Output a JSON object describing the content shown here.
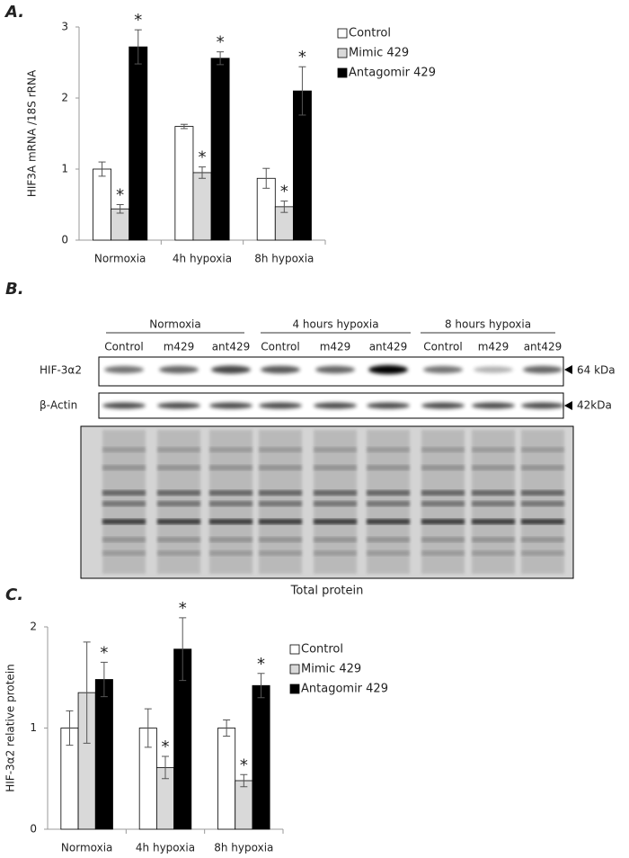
{
  "panels": {
    "a": "A.",
    "b": "B.",
    "c": "C."
  },
  "chart_data": [
    {
      "type": "bar",
      "y_label": "HIF3A mRNA /18S rRNA",
      "categories": [
        "Normoxia",
        "4h hypoxia",
        "8h hypoxia"
      ],
      "ylim": [
        0,
        3
      ],
      "yticks": [
        0,
        1,
        2,
        3
      ],
      "grid": false,
      "legend": "right",
      "series": [
        {
          "name": "Control",
          "color": "#ffffff",
          "values": [
            1.0,
            1.6,
            0.87
          ],
          "errors": [
            0.1,
            0.03,
            0.14
          ],
          "annotations": [
            null,
            null,
            null
          ]
        },
        {
          "name": "Mimic 429",
          "color": "#d9d9d9",
          "values": [
            0.44,
            0.95,
            0.47
          ],
          "errors": [
            0.06,
            0.08,
            0.08
          ],
          "annotations": [
            "*",
            "*",
            "*"
          ]
        },
        {
          "name": "Antagomir 429",
          "color": "#000000",
          "values": [
            2.72,
            2.56,
            2.1
          ],
          "errors": [
            0.24,
            0.09,
            0.34
          ],
          "annotations": [
            "*",
            "*",
            "*"
          ]
        }
      ]
    },
    {
      "type": "bar",
      "y_label": "HIF-3α2 relative protein",
      "categories": [
        "Normoxia",
        "4h hypoxia",
        "8h hypoxia"
      ],
      "ylim": [
        0,
        2
      ],
      "yticks": [
        0,
        1,
        2
      ],
      "grid": false,
      "legend": "right",
      "series": [
        {
          "name": "Control",
          "color": "#ffffff",
          "values": [
            1.0,
            1.0,
            1.0
          ],
          "errors": [
            0.17,
            0.19,
            0.08
          ],
          "annotations": [
            null,
            null,
            null
          ]
        },
        {
          "name": "Mimic 429",
          "color": "#d9d9d9",
          "values": [
            1.35,
            0.61,
            0.48
          ],
          "errors": [
            0.5,
            0.11,
            0.06
          ],
          "annotations": [
            null,
            "*",
            "*"
          ]
        },
        {
          "name": "Antagomir 429",
          "color": "#000000",
          "values": [
            1.48,
            1.78,
            1.42
          ],
          "errors": [
            0.17,
            0.31,
            0.12
          ],
          "annotations": [
            "*",
            "*",
            "*"
          ]
        }
      ]
    }
  ],
  "blot": {
    "groups": [
      "Normoxia",
      "4  hours hypoxia",
      "8 hours hypoxia"
    ],
    "lanes": [
      "Control",
      "m429",
      "ant429",
      "Control",
      "m429",
      "ant429",
      "Control",
      "m429",
      "ant429"
    ],
    "rows": [
      {
        "label": "HIF-3α2",
        "size": "64 kDa"
      },
      {
        "label": "β-Actin",
        "size": "42kDa"
      }
    ],
    "caption": "Total protein"
  }
}
